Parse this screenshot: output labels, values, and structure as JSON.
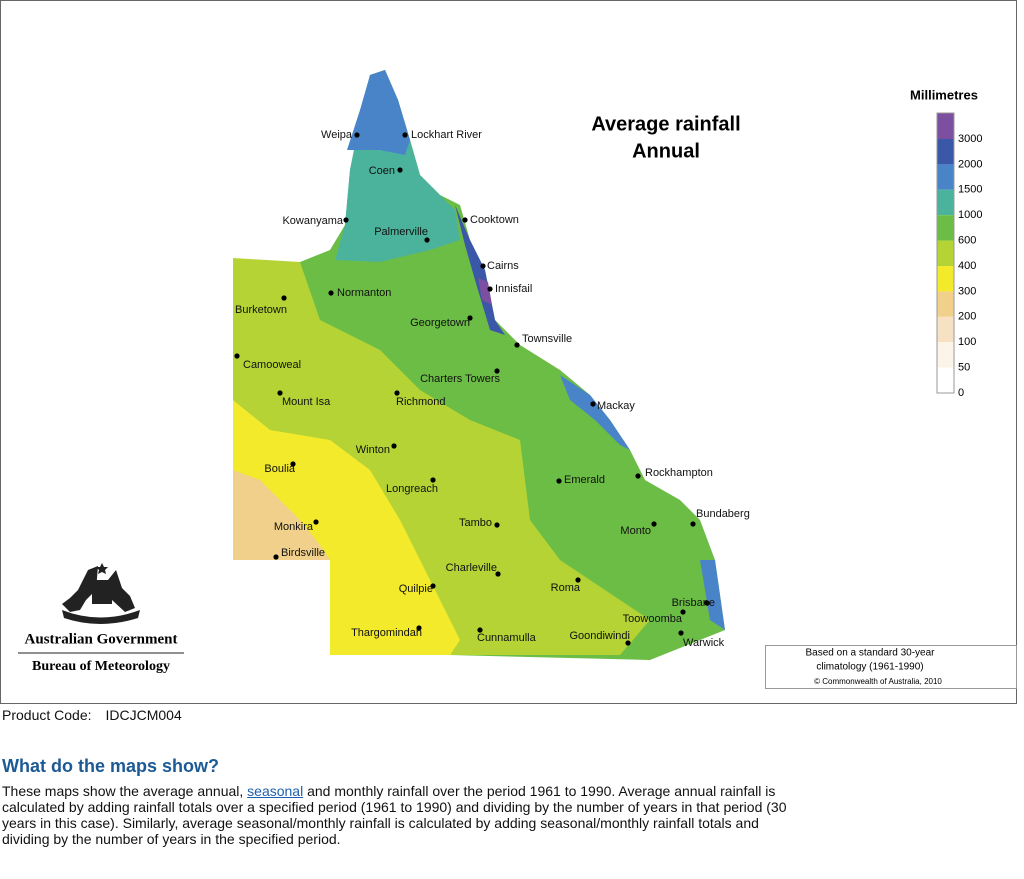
{
  "map": {
    "title": [
      "Average rainfall",
      "Annual"
    ],
    "legend": {
      "title": "Millimetres",
      "items": [
        {
          "value": 3000,
          "color": "#7d4fa0"
        },
        {
          "value": 2000,
          "color": "#3a57a8"
        },
        {
          "value": 1500,
          "color": "#4a84c8"
        },
        {
          "value": 1000,
          "color": "#4bb39c"
        },
        {
          "value": 600,
          "color": "#6cbd45"
        },
        {
          "value": 400,
          "color": "#b5d334"
        },
        {
          "value": 300,
          "color": "#f2ea2a"
        },
        {
          "value": 200,
          "color": "#f0d08a"
        },
        {
          "value": 100,
          "color": "#f6e2c2"
        },
        {
          "value": 50,
          "color": "#fbf4e8"
        },
        {
          "value": 0,
          "color": "#ffffff"
        }
      ]
    },
    "places": [
      "Weipa",
      "Lockhart River",
      "Coen",
      "Kowanyama",
      "Palmerville",
      "Cooktown",
      "Cairns",
      "Innisfail",
      "Normanton",
      "Burketown",
      "Georgetown",
      "Townsville",
      "Camooweal",
      "Charters Towers",
      "Mount Isa",
      "Richmond",
      "Mackay",
      "Winton",
      "Boulia",
      "Emerald",
      "Rockhampton",
      "Longreach",
      "Bundaberg",
      "Monkira",
      "Tambo",
      "Monto",
      "Birdsville",
      "Charleville",
      "Roma",
      "Quilpie",
      "Brisbane",
      "Toowoomba",
      "Thargomindah",
      "Cunnamulla",
      "Goondiwindi",
      "Warwick"
    ],
    "note": [
      "Based on a standard 30-year",
      "climatology (1961-1990)",
      "© Commonwealth of Australia, 2010"
    ],
    "logo": [
      "Australian Government",
      "Bureau of Meteorology"
    ]
  },
  "product_code": {
    "label": "Product Code:",
    "value": "IDCJCM004"
  },
  "section": {
    "heading": "What do the maps show?",
    "paragraph": {
      "before": "These maps show the average annual, ",
      "link": "seasonal",
      "after": " and monthly rainfall over the period 1961 to 1990. Average annual rainfall is calculated by adding rainfall totals over a specified period (1961 to 1990) and dividing by the number of years in that period (30 years in this case). Similarly, average seasonal/monthly rainfall is calculated by adding seasonal/monthly rainfall totals and dividing by the number of years in the specified period."
    }
  }
}
